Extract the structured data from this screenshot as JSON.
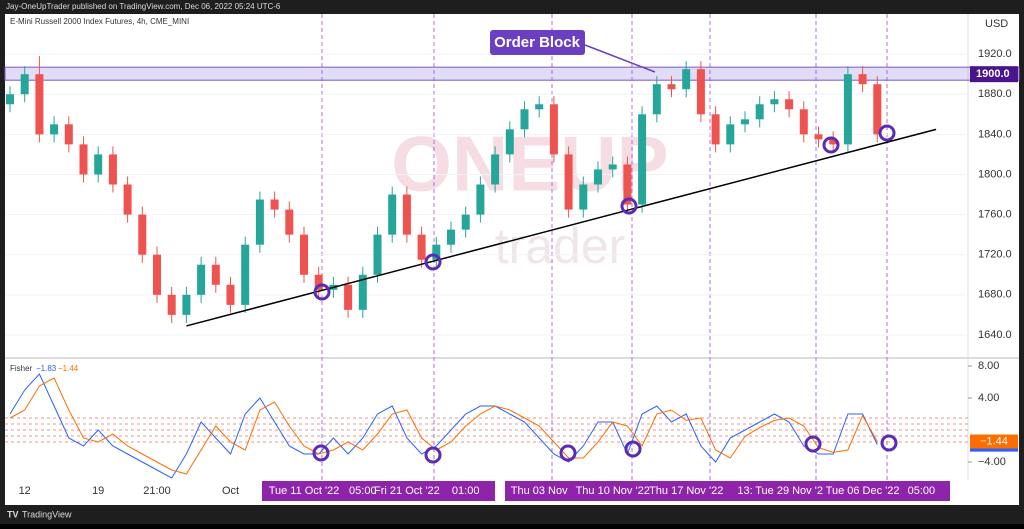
{
  "header": "Jay-OneUpTrader published on TradingView.com, Dec 06, 2022 05:24 UTC-6",
  "footer": "TradingView",
  "watermark": [
    "ONEUP",
    "trader"
  ],
  "chart_data": [
    {
      "type": "candlestick",
      "title": "E-Mini Russell 2000 Index Futures, 4h, CME_MINI",
      "currency": "USD",
      "categories": [
        null,
        "12",
        null,
        null,
        null,
        null,
        "19",
        null,
        null,
        null,
        "21:00",
        null,
        null,
        null,
        null,
        "Oct",
        null,
        null,
        null,
        null,
        "Tue 11 Oct '22",
        null,
        null,
        null,
        "05:00",
        null,
        null,
        "Fri 21 Oct '22",
        null,
        null,
        null,
        "01:00",
        null,
        null,
        null,
        null,
        "Thu 03 Nov",
        null,
        null,
        null,
        null,
        "Thu 10 Nov '22",
        null,
        null,
        null,
        null,
        "Thu 17 Nov '22",
        null,
        null,
        null,
        "13:",
        null,
        null,
        "Tue 29 Nov '2",
        null,
        null,
        null,
        null,
        "Tue 06 Dec '22",
        null,
        null,
        null,
        "05:00",
        null
      ],
      "open": [
        1870,
        1880,
        1900,
        1840,
        1850,
        1830,
        1800,
        1820,
        1790,
        1760,
        1720,
        1680,
        1660,
        1680,
        1710,
        1690,
        1670,
        1730,
        1775,
        1765,
        1740,
        1700,
        1685,
        1690,
        1665,
        1700,
        1740,
        1780,
        1740,
        1715,
        1730,
        1745,
        1760,
        1790,
        1820,
        1845,
        1865,
        1870,
        1820,
        1765,
        1790,
        1805,
        1810,
        1770,
        1860,
        1890,
        1885,
        1905,
        1860,
        1830,
        1850,
        1855,
        1870,
        1875,
        1865,
        1840,
        1835,
        1830,
        1900,
        1890,
        null,
        null,
        null,
        null
      ],
      "high": [
        1888,
        1908,
        1918,
        1858,
        1858,
        1838,
        1828,
        1828,
        1798,
        1768,
        1728,
        1688,
        1688,
        1718,
        1718,
        1698,
        1738,
        1783,
        1783,
        1773,
        1748,
        1708,
        1698,
        1698,
        1708,
        1748,
        1788,
        1788,
        1748,
        1738,
        1753,
        1768,
        1798,
        1828,
        1853,
        1873,
        1878,
        1878,
        1828,
        1798,
        1813,
        1818,
        1818,
        1868,
        1898,
        1898,
        1913,
        1913,
        1868,
        1858,
        1863,
        1878,
        1883,
        1883,
        1873,
        1848,
        1843,
        1908,
        1908,
        1898,
        null,
        null,
        null,
        null
      ],
      "low": [
        1862,
        1872,
        1832,
        1832,
        1822,
        1792,
        1792,
        1782,
        1752,
        1712,
        1672,
        1652,
        1652,
        1672,
        1682,
        1662,
        1662,
        1722,
        1757,
        1732,
        1692,
        1677,
        1677,
        1657,
        1657,
        1692,
        1732,
        1732,
        1707,
        1707,
        1722,
        1737,
        1752,
        1782,
        1812,
        1837,
        1857,
        1812,
        1757,
        1757,
        1782,
        1797,
        1762,
        1762,
        1852,
        1877,
        1877,
        1852,
        1822,
        1822,
        1842,
        1847,
        1862,
        1857,
        1832,
        1827,
        1822,
        1822,
        1882,
        1832,
        null,
        null,
        null,
        null
      ],
      "close": [
        1880,
        1900,
        1840,
        1850,
        1830,
        1800,
        1820,
        1790,
        1760,
        1720,
        1680,
        1660,
        1680,
        1710,
        1690,
        1670,
        1730,
        1775,
        1765,
        1740,
        1700,
        1685,
        1690,
        1665,
        1700,
        1740,
        1780,
        1740,
        1715,
        1730,
        1745,
        1760,
        1790,
        1820,
        1845,
        1865,
        1870,
        1820,
        1765,
        1790,
        1805,
        1810,
        1770,
        1860,
        1890,
        1885,
        1905,
        1860,
        1830,
        1850,
        1855,
        1870,
        1875,
        1865,
        1840,
        1835,
        1830,
        1900,
        1890,
        1840,
        null,
        null,
        null,
        null
      ],
      "up_color": "#26a69a",
      "down_color": "#ef5350",
      "ylim": [
        1620,
        1960
      ],
      "yticks": [
        {
          "value": 1920,
          "label": "1920.0"
        },
        {
          "value": 1880,
          "label": "1880.0"
        },
        {
          "value": 1840,
          "label": "1840.0"
        },
        {
          "value": 1800,
          "label": "1800.0"
        },
        {
          "value": 1760,
          "label": "1760.0"
        },
        {
          "value": 1720,
          "label": "1720.0"
        },
        {
          "value": 1680,
          "label": "1680.0"
        },
        {
          "value": 1640,
          "label": "1640.0"
        }
      ],
      "price_badge": {
        "value": 1900,
        "label": "1900.0"
      },
      "order_block": {
        "label": "Order Block",
        "range": [
          1894,
          1907
        ]
      },
      "trendline": {
        "from": [
          12,
          1649
        ],
        "to": [
          63,
          1845
        ]
      }
    },
    {
      "type": "line",
      "title": "Fisher",
      "series": [
        {
          "color": "#2962ff",
          "last_label": "−1.83",
          "values": [
            2,
            5,
            7,
            3,
            -1,
            -2,
            0,
            -2,
            -3,
            -4,
            -5,
            -6,
            -3,
            1,
            -1,
            -3,
            2,
            4,
            1,
            -2,
            -3,
            -3,
            -1,
            -3,
            -1,
            2,
            3,
            -1,
            -3,
            -2,
            0,
            2,
            3,
            3,
            2,
            1,
            -1,
            -3,
            -4,
            -2,
            1,
            1,
            -3,
            2,
            3,
            1,
            2,
            -2,
            -4,
            -1,
            0,
            1,
            2,
            1,
            -2,
            -3,
            -3,
            2,
            2,
            -1.83,
            null,
            null,
            null,
            null
          ]
        },
        {
          "color": "#ff6d00",
          "last_label": "−1.44",
          "values": [
            1.5,
            2.5,
            5.5,
            6.5,
            2.5,
            -1,
            -1.5,
            -0.5,
            -2,
            -3,
            -4,
            -5,
            -5.5,
            -2.5,
            0.5,
            -1.5,
            -2.5,
            2.5,
            3.5,
            0.5,
            -2,
            -3,
            -2.5,
            -1.5,
            -2.5,
            -0.5,
            2,
            2.5,
            -1,
            -2.5,
            -1.5,
            0.5,
            2,
            3,
            2.5,
            1.5,
            0.5,
            -1.5,
            -3.5,
            -3.5,
            -1.5,
            1,
            0.5,
            -2,
            2,
            2.5,
            1.2,
            1.5,
            -2.5,
            -3.5,
            -0.8,
            0.3,
            1.2,
            1.5,
            0.5,
            -2.2,
            -2.8,
            -2.5,
            1.8,
            -1.44,
            null,
            null,
            null,
            null
          ]
        }
      ],
      "ylim": [
        -6.25,
        8.5
      ],
      "yticks": [
        {
          "value": 8,
          "label": "8.00"
        },
        {
          "value": 4,
          "label": "4.00"
        },
        {
          "value": -4,
          "label": "−4.00"
        }
      ],
      "levels": [
        1.5,
        0.75,
        0,
        -0.75,
        -1.5
      ]
    }
  ]
}
